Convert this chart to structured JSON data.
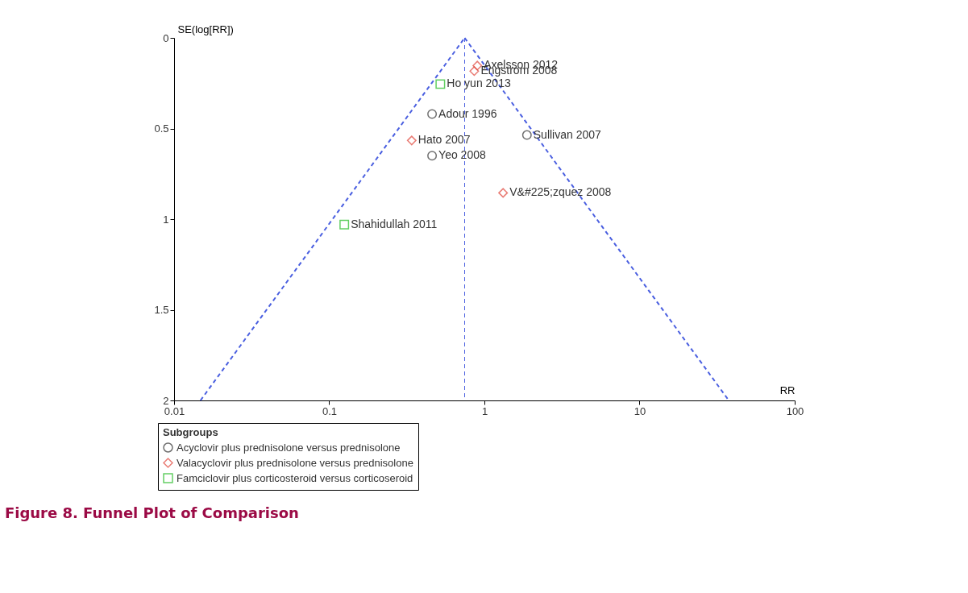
{
  "chart_data": {
    "type": "scatter",
    "title": "Figure 8. Funnel Plot of Comparison",
    "xlabel": "RR",
    "ylabel": "SE(log[RR])",
    "legend_title": "Subgroups",
    "legend": "bottom",
    "grid": false,
    "log": "x",
    "xlim": [
      0.01,
      100
    ],
    "xticks": [
      0.01,
      0.1,
      1,
      10,
      100
    ],
    "ylim": [
      2,
      0
    ],
    "yticks": [
      0,
      0.5,
      1,
      1.5,
      2
    ],
    "series": [
      {
        "name": "Acyclovir plus prednisolone versus prednisolone",
        "color": "#333333",
        "marker": "circle",
        "x": [
          0.46,
          0.46,
          1.88
        ],
        "values": [
          0.42,
          0.65,
          0.536
        ]
      },
      {
        "name": "Valacyclovir plus prednisolone versus prednisolone",
        "color": "#e0453a",
        "marker": "diamond",
        "x": [
          0.9,
          0.86,
          0.34,
          1.32
        ],
        "values": [
          0.153,
          0.183,
          0.566,
          0.855
        ]
      },
      {
        "name": "Famciclovir plus corticosteroid versus corticoseroid",
        "color": "#22bb22",
        "marker": "square",
        "x": [
          0.52,
          0.125
        ],
        "values": [
          0.255,
          1.03
        ]
      },
      {
        "type": "line",
        "color": "#4a5fe0",
        "line_style": "dashed",
        "x": [
          0.0148,
          0.746
        ],
        "values": [
          2,
          0
        ]
      },
      {
        "type": "line",
        "color": "#4a5fe0",
        "line_style": "dashed",
        "x": [
          0.746,
          37.6
        ],
        "values": [
          0,
          2
        ]
      }
    ],
    "ref_lines": [
      {
        "axis": "x",
        "value": 0.746,
        "color": "#4a5fe0",
        "line_style": "dashed"
      }
    ],
    "annotations": [
      {
        "text": "Axelsson 2012",
        "x": 0.9,
        "y": 0.153
      },
      {
        "text": "Engstrom 2008",
        "x": 0.86,
        "y": 0.183
      },
      {
        "text": "Ho yun 2013",
        "x": 0.52,
        "y": 0.255
      },
      {
        "text": "Adour 1996",
        "x": 0.46,
        "y": 0.42
      },
      {
        "text": "Hato 2007",
        "x": 0.34,
        "y": 0.566
      },
      {
        "text": "Yeo 2008",
        "x": 0.46,
        "y": 0.65
      },
      {
        "text": "Sullivan 2007",
        "x": 1.88,
        "y": 0.536
      },
      {
        "text": "V&#225;zquez 2008",
        "x": 1.32,
        "y": 0.855
      },
      {
        "text": "Shahidullah 2011",
        "x": 0.125,
        "y": 1.03
      }
    ]
  }
}
